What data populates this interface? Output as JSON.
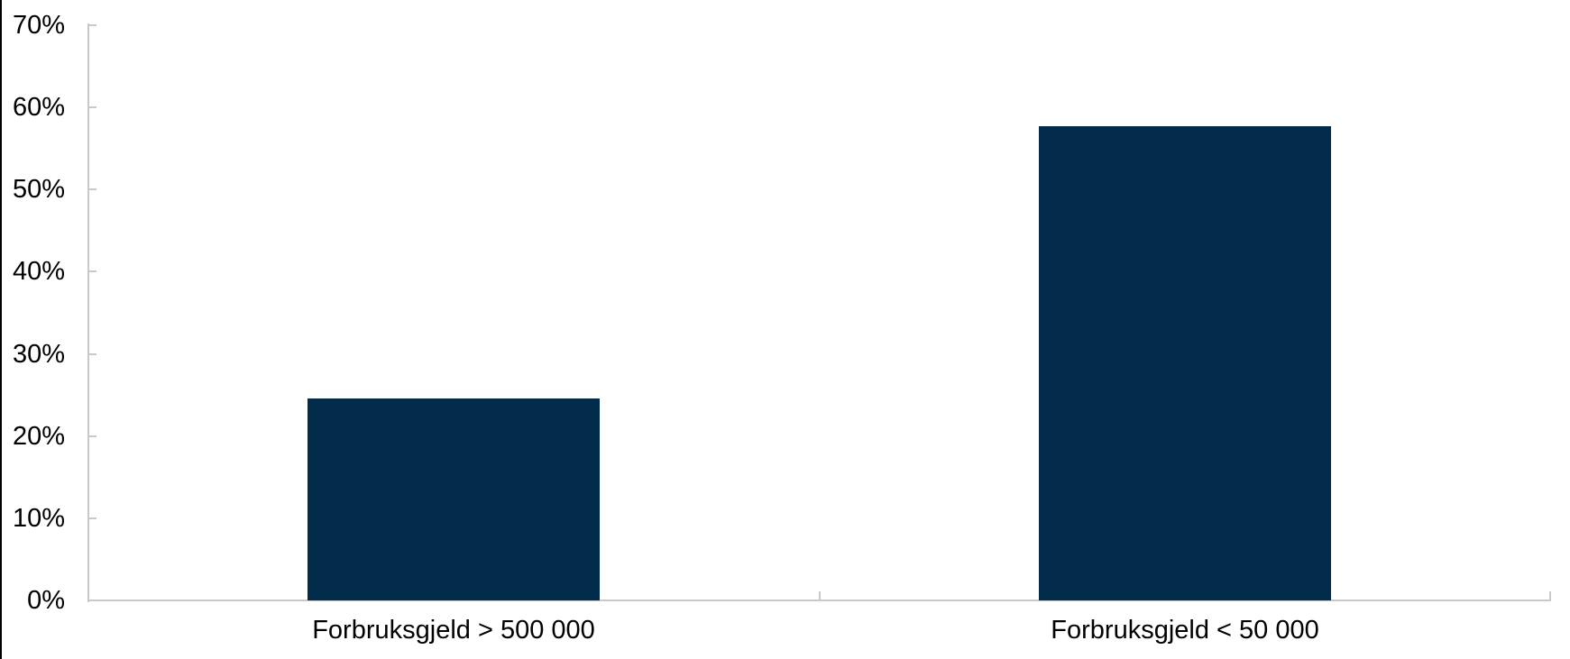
{
  "chart_data": {
    "type": "bar",
    "title": "",
    "xlabel": "",
    "ylabel": "",
    "categories": [
      "Forbruksgjeld > 500 000",
      "Forbruksgjeld < 50 000"
    ],
    "values": [
      24.6,
      57.7
    ],
    "ylim": [
      0,
      70
    ],
    "y_tick_values": [
      0,
      10,
      20,
      30,
      40,
      50,
      60,
      70
    ],
    "y_tick_labels": [
      "0%",
      "10%",
      "20%",
      "30%",
      "40%",
      "50%",
      "60%",
      "70%"
    ],
    "grid": "off",
    "legend_position": "none",
    "tick_direction": "inside",
    "bar_color": "#032c4a",
    "axis_color": "#c9c9c9",
    "text_color": "#000000",
    "background_color": "#ffffff",
    "left_edge_border_color": "#000000"
  }
}
